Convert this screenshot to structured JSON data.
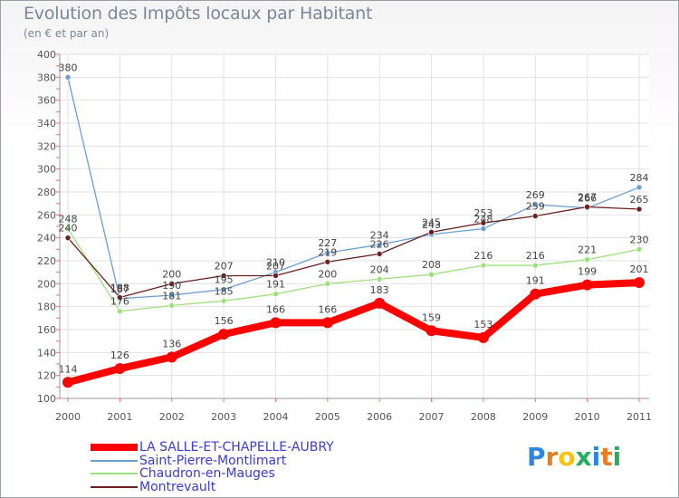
{
  "chart_data": {
    "type": "line",
    "title": "Evolution des Impôts locaux par Habitant",
    "subtitle": "(en € et par an)",
    "x": [
      "2000",
      "2001",
      "2002",
      "2003",
      "2004",
      "2005",
      "2006",
      "2007",
      "2008",
      "2009",
      "2010",
      "2011"
    ],
    "ylim": [
      100,
      400
    ],
    "yticks": [
      100,
      120,
      140,
      160,
      180,
      200,
      220,
      240,
      260,
      280,
      300,
      320,
      340,
      360,
      380,
      400
    ],
    "grid": true,
    "series": [
      {
        "name": "LA SALLE-ET-CHAPELLE-AUBRY",
        "color": "#ff0000",
        "values": [
          114,
          126,
          136,
          156,
          166,
          166,
          183,
          159,
          153,
          191,
          199,
          201
        ]
      },
      {
        "name": "Saint-Pierre-Montlimart",
        "color": "#6a9fd4",
        "values": [
          380,
          187,
          190,
          195,
          210,
          227,
          234,
          243,
          248,
          269,
          266,
          284
        ]
      },
      {
        "name": "Chaudron-en-Mauges",
        "color": "#9be27a",
        "values": [
          248,
          176,
          181,
          185,
          191,
          200,
          204,
          208,
          216,
          216,
          221,
          230
        ]
      },
      {
        "name": "Montrevault",
        "color": "#6b1f1f",
        "values": [
          240,
          188,
          200,
          207,
          207,
          219,
          226,
          245,
          253,
          259,
          267,
          265
        ]
      }
    ]
  },
  "logo": {
    "text": "Proxiti",
    "letters": [
      "P",
      "r",
      "o",
      "x",
      "i",
      "t",
      "i"
    ],
    "colors": [
      "#2e86de",
      "#e67e22",
      "#f1c40f",
      "#27ae60",
      "#2e86de",
      "#e67e22",
      "#27ae60"
    ]
  }
}
